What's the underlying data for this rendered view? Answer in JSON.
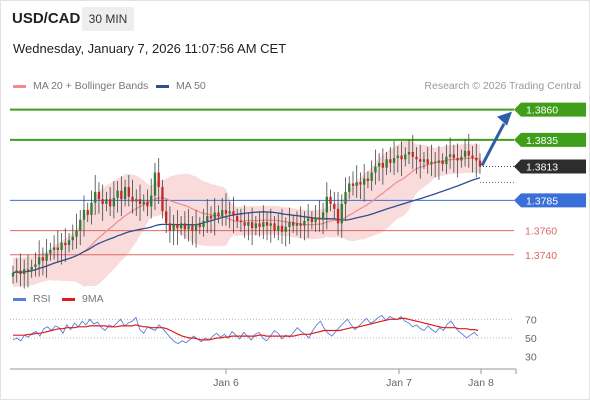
{
  "header": {
    "symbol": "USD/CAD",
    "timeframe": "30 MIN",
    "timestamp": "Wednesday, January 7, 2026 11:07:56 AM CET"
  },
  "legend": {
    "ma20": {
      "label": "MA 20 + Bollinger Bands",
      "color": "#f28b8b"
    },
    "ma50": {
      "label": "MA 50",
      "color": "#2f4f8f"
    },
    "credit": "Research © 2026 Trading Central"
  },
  "rsi_legend": {
    "rsi": {
      "label": "RSI",
      "color": "#5b7fd6"
    },
    "ma": {
      "label": "9MA",
      "color": "#e01b1b"
    }
  },
  "chart_data": {
    "type": "candlestick",
    "price_range": [
      1.3715,
      1.3868
    ],
    "current_price": "1.3813",
    "x_ticks": [
      "Jan 6",
      "Jan 7",
      "Jan 8"
    ],
    "levels": [
      {
        "label": "1.3860",
        "value": 1.386,
        "kind": "resistance",
        "color": "#3f9e1a"
      },
      {
        "label": "1.3835",
        "value": 1.3835,
        "kind": "resistance",
        "color": "#3f9e1a"
      },
      {
        "label": "1.3813",
        "value": 1.3813,
        "kind": "current",
        "color": "#2d2d2d"
      },
      {
        "label": "1.3785",
        "value": 1.3785,
        "kind": "pivot",
        "color": "#3a6fd8"
      },
      {
        "label": "1.3760",
        "value": 1.376,
        "kind": "support",
        "color": "#e06666"
      },
      {
        "label": "1.3740",
        "value": 1.374,
        "kind": "support",
        "color": "#e06666"
      }
    ],
    "arrow": {
      "from": 1.3813,
      "to": 1.386,
      "color": "#2f5fa8"
    },
    "closes": [
      1.3725,
      1.3727,
      1.3724,
      1.3728,
      1.3727,
      1.373,
      1.3732,
      1.3738,
      1.3735,
      1.3741,
      1.3744,
      1.3746,
      1.3744,
      1.375,
      1.3748,
      1.3752,
      1.3755,
      1.376,
      1.3769,
      1.3777,
      1.3773,
      1.3783,
      1.3792,
      1.3786,
      1.3782,
      1.3786,
      1.378,
      1.3787,
      1.3793,
      1.3786,
      1.3796,
      1.3788,
      1.3784,
      1.3786,
      1.3782,
      1.3784,
      1.378,
      1.3789,
      1.3808,
      1.3796,
      1.3776,
      1.3766,
      1.376,
      1.3765,
      1.3762,
      1.3766,
      1.3761,
      1.3764,
      1.376,
      1.3765,
      1.3763,
      1.3768,
      1.3772,
      1.377,
      1.3775,
      1.3772,
      1.3777,
      1.3774,
      1.3776,
      1.3772,
      1.3768,
      1.3767,
      1.3764,
      1.3767,
      1.3762,
      1.3766,
      1.3763,
      1.3767,
      1.3764,
      1.3766,
      1.376,
      1.3764,
      1.3759,
      1.3763,
      1.3767,
      1.3764,
      1.3766,
      1.3764,
      1.3768,
      1.377,
      1.3767,
      1.3771,
      1.3769,
      1.3775,
      1.3788,
      1.3782,
      1.3778,
      1.3766,
      1.3782,
      1.3792,
      1.3799,
      1.3797,
      1.38,
      1.3798,
      1.3803,
      1.3801,
      1.3808,
      1.3813,
      1.3816,
      1.3812,
      1.3819,
      1.3816,
      1.382,
      1.3822,
      1.3819,
      1.3823,
      1.3825,
      1.3821,
      1.3819,
      1.3817,
      1.3819,
      1.3815,
      1.3817,
      1.3816,
      1.3818,
      1.3815,
      1.3821,
      1.3823,
      1.382,
      1.3818,
      1.3821,
      1.3826,
      1.3822,
      1.382,
      1.3818,
      1.3813
    ],
    "rsi_ticks": [
      70,
      50,
      30
    ],
    "rsi_range": [
      20,
      80
    ],
    "rsi": [
      48,
      50,
      47,
      53,
      51,
      55,
      57,
      52,
      60,
      62,
      58,
      63,
      61,
      55,
      64,
      59,
      66,
      62,
      68,
      64,
      70,
      65,
      67,
      61,
      58,
      64,
      62,
      66,
      70,
      63,
      66,
      68,
      72,
      59,
      55,
      62,
      60,
      58,
      64,
      60,
      55,
      50,
      46,
      44,
      47,
      45,
      48,
      52,
      49,
      46,
      50,
      48,
      52,
      55,
      51,
      54,
      50,
      57,
      53,
      49,
      56,
      52,
      48,
      54,
      56,
      50,
      47,
      52,
      58,
      55,
      49,
      53,
      51,
      56,
      61,
      57,
      54,
      50,
      58,
      64,
      68,
      60,
      55,
      52,
      57,
      62,
      66,
      70,
      64,
      59,
      63,
      67,
      71,
      66,
      68,
      72,
      74,
      69,
      73,
      71,
      70,
      73,
      68,
      66,
      62,
      64,
      60,
      58,
      63,
      59,
      56,
      61,
      58,
      65,
      68,
      62,
      57,
      54,
      50,
      53,
      56,
      52
    ],
    "rsi_ma": [
      53,
      53,
      53,
      53,
      54,
      54,
      55,
      55,
      56,
      57,
      58,
      59,
      60,
      60,
      61,
      61,
      61,
      62,
      62,
      62,
      63,
      63,
      63,
      63,
      63,
      62,
      62,
      62,
      63,
      63,
      63,
      63,
      64,
      63,
      62,
      62,
      61,
      61,
      61,
      61,
      60,
      58,
      56,
      54,
      52,
      51,
      50,
      50,
      49,
      48,
      48,
      48,
      49,
      50,
      50,
      51,
      51,
      52,
      52,
      52,
      52,
      52,
      52,
      52,
      53,
      53,
      52,
      52,
      52,
      52,
      52,
      52,
      52,
      52,
      53,
      54,
      54,
      54,
      55,
      56,
      57,
      58,
      58,
      58,
      58,
      58,
      59,
      60,
      61,
      61,
      62,
      63,
      64,
      65,
      66,
      67,
      68,
      69,
      70,
      70,
      70,
      71,
      71,
      70,
      69,
      68,
      67,
      66,
      65,
      64,
      63,
      62,
      61,
      61,
      61,
      61,
      60,
      60,
      60,
      59,
      59,
      58
    ]
  }
}
